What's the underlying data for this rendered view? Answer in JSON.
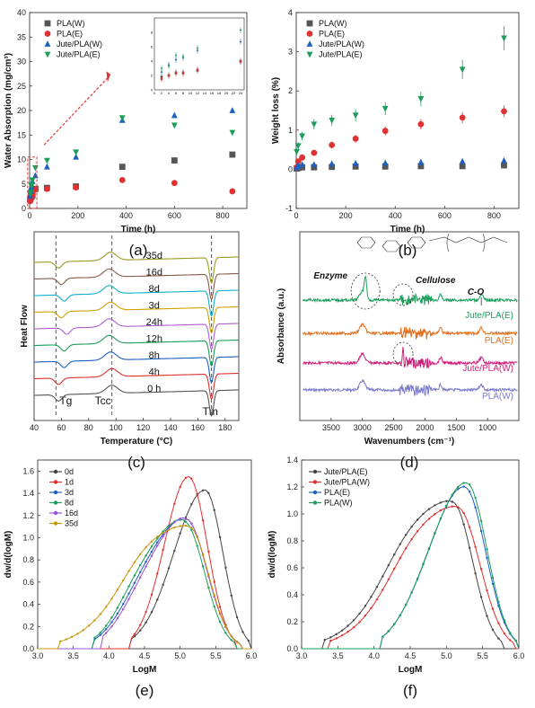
{
  "chart_data": [
    {
      "panel": "(a)",
      "type": "scatter",
      "xlabel": "Time (h)",
      "ylabel": "Water Absorption (mg/cm³)",
      "xlim": [
        0,
        900
      ],
      "ylim": [
        0,
        40
      ],
      "xticks": [
        0,
        200,
        400,
        600,
        800
      ],
      "yticks": [
        0,
        5,
        10,
        15,
        20,
        25,
        30,
        35,
        40
      ],
      "legend_position": "top-left",
      "series": [
        {
          "name": "PLA(W)",
          "marker": "square",
          "color": "#555555",
          "x": [
            2,
            4,
            6,
            8,
            12,
            24,
            72,
            192,
            384,
            600,
            840
          ],
          "y": [
            1.8,
            2.0,
            2.4,
            2.4,
            2.7,
            4.0,
            4.2,
            4.5,
            8.5,
            9.8,
            11.0
          ]
        },
        {
          "name": "PLA(E)",
          "marker": "circle",
          "color": "#e03030",
          "x": [
            2,
            4,
            6,
            8,
            12,
            24,
            72,
            192,
            384,
            600,
            840
          ],
          "y": [
            1.5,
            2.0,
            2.3,
            2.3,
            2.8,
            3.9,
            4.0,
            4.3,
            5.8,
            5.2,
            3.5
          ]
        },
        {
          "name": "Jute/PLA(W)",
          "marker": "triangle-up",
          "color": "#1f5fbf",
          "x": [
            2,
            4,
            6,
            8,
            12,
            24,
            72,
            192,
            384,
            600,
            840
          ],
          "y": [
            2.5,
            3.5,
            4.2,
            4.5,
            5.5,
            6.7,
            8.5,
            10.5,
            18.0,
            19.0,
            20.0
          ]
        },
        {
          "name": "Jute/PLA(E)",
          "marker": "triangle-down",
          "color": "#1a9e5a",
          "x": [
            2,
            4,
            6,
            8,
            12,
            24,
            72,
            192,
            384,
            600,
            840
          ],
          "y": [
            3.0,
            3.3,
            4.8,
            4.6,
            5.8,
            8.3,
            9.8,
            11.5,
            18.5,
            17.0,
            15.5
          ]
        }
      ],
      "inset": {
        "xlim": [
          0,
          25
        ],
        "ylim": [
          0,
          10
        ],
        "xticks": [
          0,
          2,
          4,
          6,
          8,
          10,
          12,
          14,
          16,
          18,
          20,
          22,
          24
        ],
        "yticks": [
          0,
          2,
          4,
          6,
          8
        ]
      }
    },
    {
      "panel": "(b)",
      "type": "scatter",
      "xlabel": "Time (h)",
      "ylabel": "Weight loss (%)",
      "xlim": [
        0,
        900
      ],
      "ylim": [
        -1,
        4
      ],
      "xticks": [
        0,
        200,
        400,
        600,
        800
      ],
      "yticks": [
        -1,
        0,
        1,
        2,
        3,
        4
      ],
      "legend_position": "top-left",
      "series": [
        {
          "name": "PLA(W)",
          "marker": "square",
          "color": "#555555",
          "x": [
            2,
            8,
            24,
            72,
            144,
            240,
            360,
            504,
            672,
            840
          ],
          "y": [
            0.02,
            0.03,
            0.05,
            0.05,
            0.06,
            0.07,
            0.07,
            0.08,
            0.08,
            0.1
          ]
        },
        {
          "name": "PLA(E)",
          "marker": "circle",
          "color": "#e03030",
          "x": [
            2,
            8,
            24,
            72,
            144,
            240,
            360,
            504,
            672,
            840
          ],
          "y": [
            0.05,
            0.2,
            0.3,
            0.42,
            0.62,
            0.78,
            0.98,
            1.15,
            1.32,
            1.48
          ]
        },
        {
          "name": "Jute/PLA(W)",
          "marker": "triangle-up",
          "color": "#1f5fbf",
          "x": [
            2,
            8,
            24,
            72,
            144,
            240,
            360,
            504,
            672,
            840
          ],
          "y": [
            0.05,
            0.1,
            0.12,
            0.12,
            0.14,
            0.15,
            0.16,
            0.18,
            0.2,
            0.22
          ]
        },
        {
          "name": "Jute/PLA(E)",
          "marker": "triangle-down",
          "color": "#1a9e5a",
          "x": [
            2,
            8,
            24,
            72,
            144,
            240,
            360,
            504,
            672,
            840
          ],
          "y": [
            0.45,
            0.6,
            0.85,
            1.15,
            1.25,
            1.38,
            1.55,
            1.8,
            2.55,
            3.35
          ]
        }
      ]
    },
    {
      "panel": "(c)",
      "type": "line",
      "xlabel": "Temperature (°C)",
      "ylabel": "Heat Flow",
      "xlim": [
        40,
        190
      ],
      "xticks": [
        40,
        60,
        80,
        100,
        120,
        140,
        160,
        180
      ],
      "markers": {
        "Tg": 56,
        "Tcc": 97,
        "Tm": 170
      },
      "marker_labels": [
        "Tg",
        "Tcc",
        "Tm"
      ],
      "series": [
        {
          "name": "0 h",
          "color": "#555555",
          "tg": 58,
          "tcc": 97,
          "tm": 170
        },
        {
          "name": "4h",
          "color": "#e03030",
          "tg": 58,
          "tcc": 97,
          "tm": 170
        },
        {
          "name": "8h",
          "color": "#1f5fbf",
          "tg": 62,
          "tcc": 96,
          "tm": 170
        },
        {
          "name": "12h",
          "color": "#1a9e5a",
          "tg": 62,
          "tcc": 95,
          "tm": 170
        },
        {
          "name": "24h",
          "color": "#b060d0",
          "tg": 64,
          "tcc": 95,
          "tm": 170
        },
        {
          "name": "3d",
          "color": "#d0a000",
          "tg": 60,
          "tcc": 96,
          "tm": 170
        },
        {
          "name": "8d",
          "color": "#10b0c8",
          "tg": 62,
          "tcc": 95,
          "tm": 170
        },
        {
          "name": "16d",
          "color": "#8a5a4a",
          "tg": 60,
          "tcc": 95,
          "tm": 170
        },
        {
          "name": "35d",
          "color": "#9a9a20",
          "tg": 58,
          "tcc": 96,
          "tm": 170
        }
      ]
    },
    {
      "panel": "(d)",
      "type": "line",
      "xlabel": "Wavenumbers (cm⁻¹)",
      "ylabel": "Absorbance (a.u.)",
      "xlim": [
        4000,
        500
      ],
      "xticks": [
        3500,
        3000,
        2500,
        2000,
        1500,
        1000
      ],
      "annotations": [
        "Enzyme",
        "Cellulose",
        "C-O"
      ],
      "series": [
        {
          "name": "PLA(W)",
          "color": "#7a7ac8"
        },
        {
          "name": "Jute/PLA(W)",
          "color": "#d0207a"
        },
        {
          "name": "PLA(E)",
          "color": "#e07020"
        },
        {
          "name": "Jute/PLA(E)",
          "color": "#1a9e5a"
        }
      ]
    },
    {
      "panel": "(e)",
      "type": "line",
      "xlabel": "LogM",
      "ylabel": "dw/d(logM)",
      "xlim": [
        3.0,
        6.0
      ],
      "ylim": [
        0.0,
        1.7
      ],
      "xticks": [
        3.0,
        3.5,
        4.0,
        4.5,
        5.0,
        5.5,
        6.0
      ],
      "yticks": [
        0.0,
        0.2,
        0.4,
        0.6,
        0.8,
        1.0,
        1.2,
        1.4,
        1.6
      ],
      "legend_position": "top-left",
      "series": [
        {
          "name": "0d",
          "color": "#444444",
          "peak_x": 5.35,
          "peak_y": 1.43,
          "low": 4.3,
          "high": 6.0,
          "shoulder": 0
        },
        {
          "name": "1d",
          "color": "#e03030",
          "peak_x": 5.12,
          "peak_y": 1.55,
          "low": 4.3,
          "high": 5.8,
          "shoulder": 0
        },
        {
          "name": "3d",
          "color": "#1f5fbf",
          "peak_x": 5.08,
          "peak_y": 1.17,
          "low": 3.8,
          "high": 5.85,
          "shoulder": 0.3
        },
        {
          "name": "8d",
          "color": "#1a9e5a",
          "peak_x": 5.05,
          "peak_y": 1.15,
          "low": 3.8,
          "high": 5.8,
          "shoulder": 0.45
        },
        {
          "name": "16d",
          "color": "#9a50d8",
          "peak_x": 5.08,
          "peak_y": 1.17,
          "low": 3.9,
          "high": 5.85,
          "shoulder": 0.35
        },
        {
          "name": "35d",
          "color": "#c8960a",
          "peak_x": 5.12,
          "peak_y": 1.1,
          "low": 3.3,
          "high": 5.85,
          "shoulder": 0.3
        }
      ]
    },
    {
      "panel": "(f)",
      "type": "line",
      "xlabel": "LogM",
      "ylabel": "dw/d(logM)",
      "xlim": [
        3.0,
        6.0
      ],
      "ylim": [
        0.0,
        1.4
      ],
      "xticks": [
        3.0,
        3.5,
        4.0,
        4.5,
        5.0,
        5.5,
        6.0
      ],
      "yticks": [
        0.0,
        0.2,
        0.4,
        0.6,
        0.8,
        1.0,
        1.2,
        1.4
      ],
      "legend_position": "top-left",
      "series": [
        {
          "name": "Jute/PLA(E)",
          "color": "#444444",
          "peak_x": 5.08,
          "peak_y": 1.09,
          "low": 3.3,
          "high": 5.8,
          "shoulder": 0.25
        },
        {
          "name": "Jute/PLA(W)",
          "color": "#e03030",
          "peak_x": 5.15,
          "peak_y": 1.05,
          "low": 3.4,
          "high": 5.95,
          "shoulder": 0.25
        },
        {
          "name": "PLA(E)",
          "color": "#1f5fbf",
          "peak_x": 5.25,
          "peak_y": 1.2,
          "low": 4.1,
          "high": 6.0,
          "shoulder": 0.1
        },
        {
          "name": "PLA(W)",
          "color": "#1a9e5a",
          "peak_x": 5.28,
          "peak_y": 1.23,
          "low": 4.1,
          "high": 6.0,
          "shoulder": 0.1
        }
      ]
    }
  ]
}
